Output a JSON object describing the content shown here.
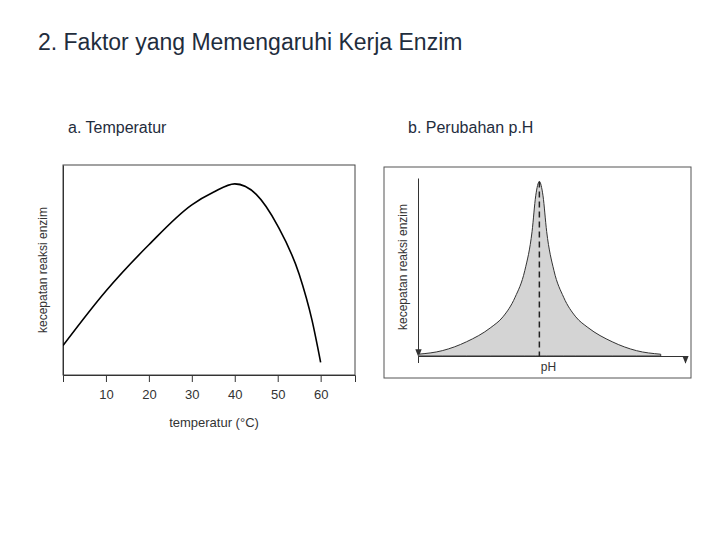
{
  "title": "2. Faktor yang Memengaruhi Kerja Enzim",
  "chart_data": [
    {
      "type": "line",
      "title": "a. Temperatur",
      "x_label": "temperatur (°C)",
      "y_label": "kecepatan reaksi enzim",
      "x": [
        0,
        10,
        20,
        30,
        35,
        40,
        45,
        50,
        55,
        58,
        60
      ],
      "series": [
        {
          "color": "#000000",
          "values": [
            14,
            40,
            62,
            81,
            87,
            91,
            86,
            71,
            48,
            26,
            6
          ]
        }
      ],
      "xlim": [
        0,
        68
      ],
      "xticks": [
        10,
        20,
        30,
        40,
        50,
        60
      ],
      "ylim": [
        0,
        100
      ],
      "tick_labels": "x"
    },
    {
      "type": "area",
      "title": "b. Perubahan p.H",
      "x_label": "pH",
      "y_label": "kecepatan reaksi enzim",
      "x": [
        0,
        1,
        2,
        3,
        3.5,
        4,
        4.4,
        4.7,
        4.85,
        5,
        5.15,
        5.3,
        5.6,
        6,
        6.5,
        7,
        8,
        9,
        10
      ],
      "series": [
        {
          "color": "#d4d4d4",
          "values": [
            1,
            3,
            8,
            16,
            22,
            33,
            48,
            70,
            90,
            98,
            90,
            70,
            48,
            33,
            22,
            16,
            8,
            3,
            1
          ]
        }
      ],
      "xlim": [
        0,
        11
      ],
      "ylim": [
        0,
        100
      ],
      "tick_labels": false
    }
  ]
}
